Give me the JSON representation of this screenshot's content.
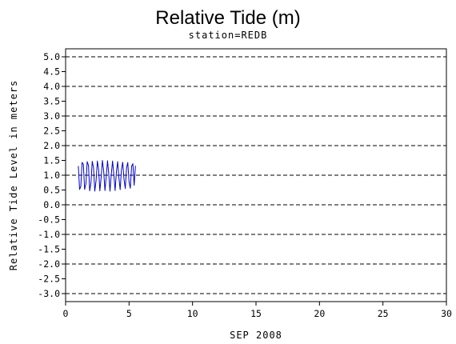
{
  "chart_data": {
    "type": "line",
    "title": "Relative Tide (m)",
    "subtitle": "station=REDB",
    "xlabel": "SEP 2008",
    "ylabel": "Relative Tide Level in meters",
    "xlim": [
      0,
      30
    ],
    "ylim": [
      -3.0,
      5.0
    ],
    "x_ticks": [
      0,
      5,
      10,
      15,
      20,
      25,
      30
    ],
    "y_ticks": [
      "-3.0",
      "-2.5",
      "-2.0",
      "-1.5",
      "-1.0",
      "-0.5",
      "0.0",
      "0.5",
      "1.0",
      "1.5",
      "2.0",
      "2.5",
      "3.0",
      "3.5",
      "4.0",
      "4.5",
      "5.0"
    ],
    "gridlines_y": [
      -3.0,
      -2.0,
      -1.0,
      0.0,
      1.0,
      2.0,
      3.0,
      4.0,
      5.0
    ],
    "grid": "horizontal dashed at whole meters",
    "series": [
      {
        "color": "#0000cc",
        "x": [
          1.0,
          1.1,
          1.2,
          1.3,
          1.4,
          1.5,
          1.6,
          1.7,
          1.8,
          1.9,
          2.0,
          2.1,
          2.2,
          2.3,
          2.4,
          2.5,
          2.6,
          2.7,
          2.8,
          2.9,
          3.0,
          3.1,
          3.2,
          3.3,
          3.4,
          3.5,
          3.6,
          3.7,
          3.8,
          3.9,
          4.0,
          4.1,
          4.2,
          4.3,
          4.4,
          4.5,
          4.6,
          4.7,
          4.8,
          4.9,
          5.0,
          5.1,
          5.2,
          5.3,
          5.4,
          5.5
        ],
        "y": [
          1.31,
          0.52,
          0.62,
          1.43,
          1.37,
          0.52,
          0.71,
          1.46,
          1.33,
          0.47,
          0.74,
          1.47,
          1.25,
          0.46,
          0.82,
          1.48,
          1.19,
          0.47,
          0.91,
          1.5,
          1.14,
          0.48,
          0.96,
          1.49,
          1.06,
          0.46,
          1.03,
          1.48,
          1.02,
          0.48,
          1.12,
          1.46,
          0.92,
          0.51,
          1.18,
          1.44,
          0.87,
          0.55,
          1.25,
          1.43,
          0.78,
          0.56,
          1.3,
          1.39,
          0.66,
          1.32
        ]
      }
    ]
  }
}
